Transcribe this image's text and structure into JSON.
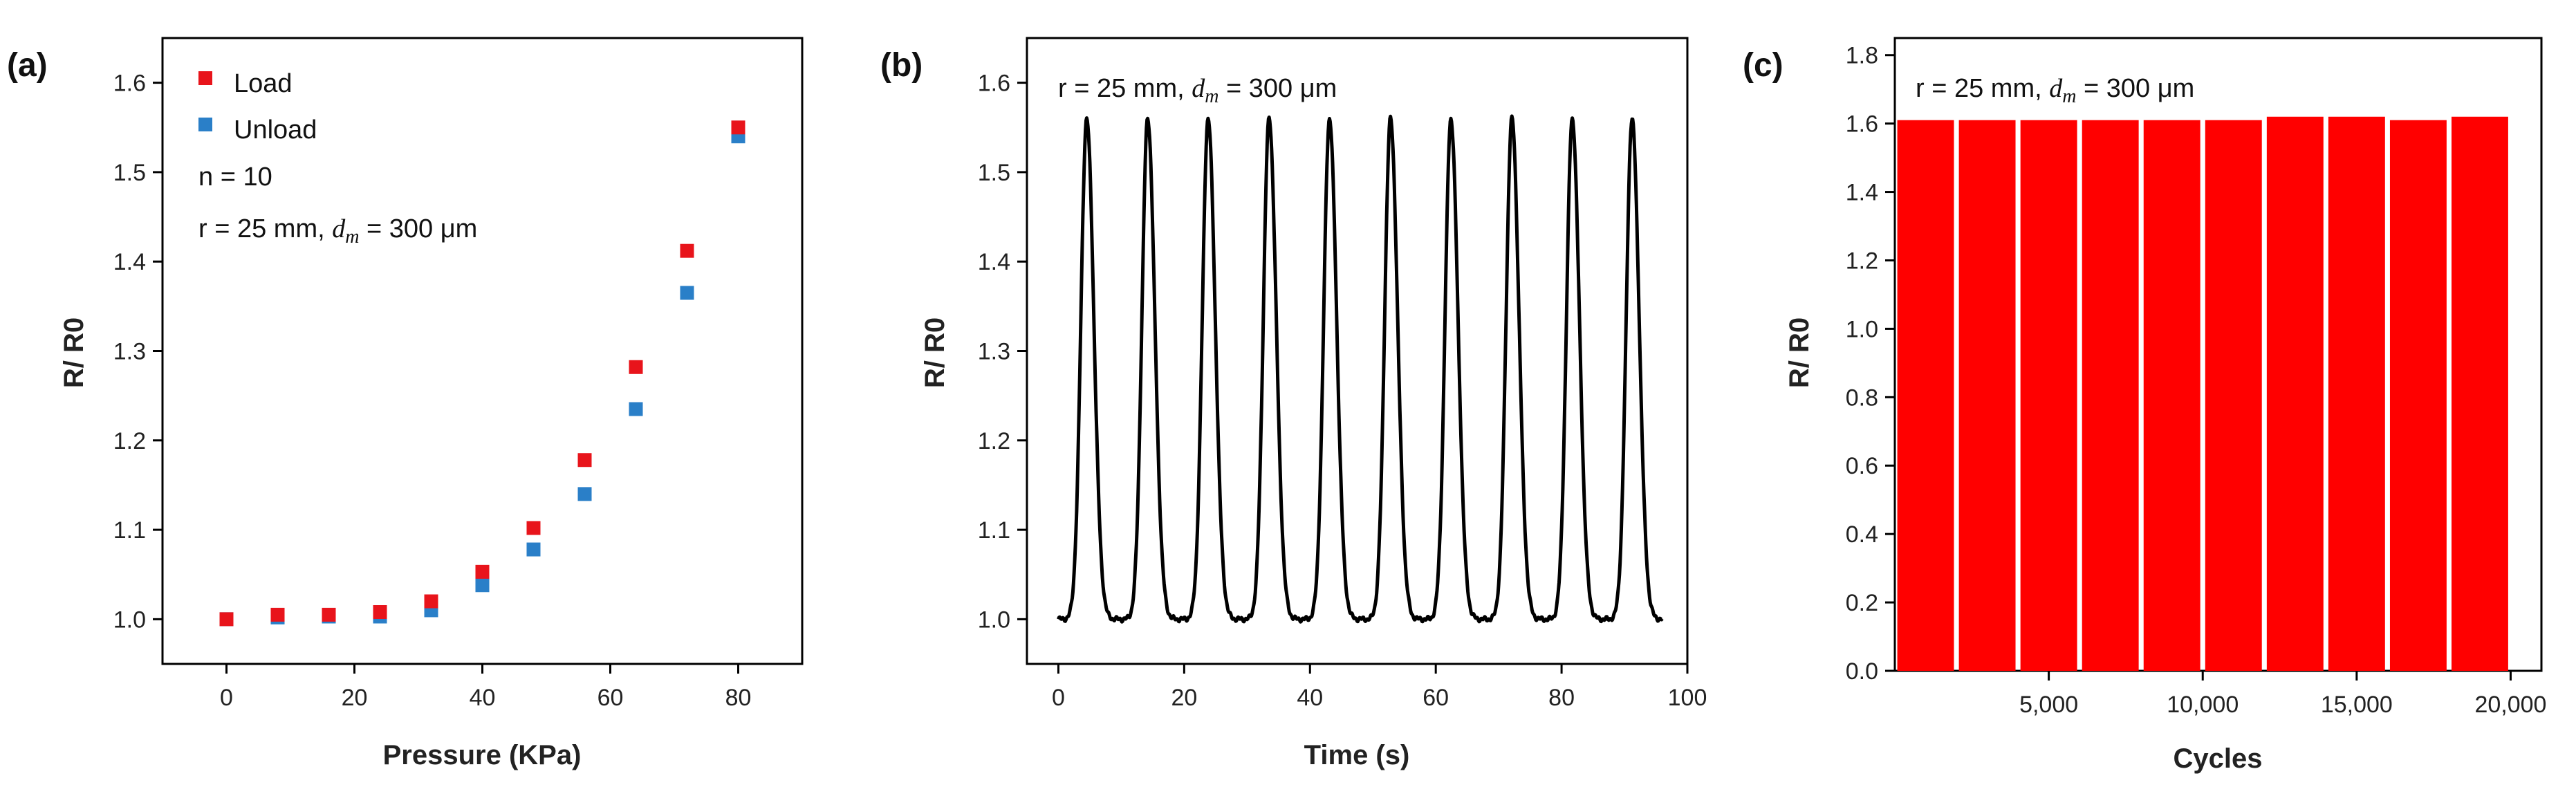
{
  "chart_data": [
    {
      "type": "scatter",
      "panel": "(a)",
      "xlabel": "Pressure (KPa)",
      "ylabel": "R/ R0",
      "xlim": [
        -10,
        90
      ],
      "ylim": [
        0.95,
        1.65
      ],
      "xticks": [
        "0",
        "20",
        "40",
        "60",
        "80"
      ],
      "yticks": [
        "1.0",
        "1.1",
        "1.2",
        "1.3",
        "1.4",
        "1.5",
        "1.6"
      ],
      "legend": [
        "Load",
        "Unload"
      ],
      "annotations": [
        "n = 10",
        "r = 25 mm, dm = 300 μm"
      ],
      "annotation_parts": {
        "pre": "r = 25 mm, ",
        "d": "d",
        "sub": "m",
        "post": " = 300 μm"
      },
      "series": [
        {
          "name": "Load",
          "color": "#e8141b",
          "x": [
            0,
            8,
            16,
            24,
            32,
            40,
            48,
            56,
            64,
            72,
            80
          ],
          "y": [
            1.0,
            1.005,
            1.005,
            1.008,
            1.02,
            1.053,
            1.102,
            1.178,
            1.282,
            1.412,
            1.55
          ]
        },
        {
          "name": "Unload",
          "color": "#2a7fc8",
          "x": [
            0,
            8,
            16,
            24,
            32,
            40,
            48,
            56,
            64,
            72,
            80
          ],
          "y": [
            1.0,
            1.002,
            1.003,
            1.003,
            1.01,
            1.038,
            1.078,
            1.14,
            1.235,
            1.365,
            1.54
          ]
        }
      ]
    },
    {
      "type": "line",
      "panel": "(b)",
      "xlabel": "Time (s)",
      "ylabel": "R/ R0",
      "xlim": [
        -5,
        100
      ],
      "ylim": [
        0.95,
        1.65
      ],
      "xticks": [
        "0",
        "20",
        "40",
        "60",
        "80",
        "100"
      ],
      "yticks": [
        "1.0",
        "1.1",
        "1.2",
        "1.3",
        "1.4",
        "1.5",
        "1.6"
      ],
      "annotation": "r = 25 mm, dm = 300 μm",
      "annotation_parts": {
        "pre": "r = 25 mm, ",
        "d": "d",
        "sub": "m",
        "post": " = 300 μm"
      },
      "baseline": 1.0,
      "peak_value": 1.56,
      "peak_times": [
        4.5,
        14.2,
        23.8,
        33.5,
        43.1,
        52.8,
        62.4,
        72.1,
        81.7,
        91.2
      ],
      "t_end": 96,
      "color": "#000000"
    },
    {
      "type": "bar",
      "panel": "(c)",
      "xlabel": "Cycles",
      "ylabel": "R/ R0",
      "xlim": [
        0,
        21000
      ],
      "ylim": [
        0,
        1.85
      ],
      "xticks": [
        "5,000",
        "10,000",
        "15,000",
        "20,000"
      ],
      "xtick_values": [
        5000,
        10000,
        15000,
        20000
      ],
      "yticks": [
        "0.0",
        "0.2",
        "0.4",
        "0.6",
        "0.8",
        "1.0",
        "1.2",
        "1.4",
        "1.6",
        "1.8"
      ],
      "annotation": "r = 25 mm, dm = 300 μm",
      "annotation_parts": {
        "pre": "r = 25 mm, ",
        "d": "d",
        "sub": "m",
        "post": " = 300 μm"
      },
      "categories": [
        2000,
        4000,
        6000,
        8000,
        10000,
        12000,
        14000,
        16000,
        18000,
        20000
      ],
      "values": [
        1.61,
        1.61,
        1.61,
        1.61,
        1.61,
        1.61,
        1.62,
        1.62,
        1.61,
        1.62
      ],
      "color": "#ff0000"
    }
  ]
}
